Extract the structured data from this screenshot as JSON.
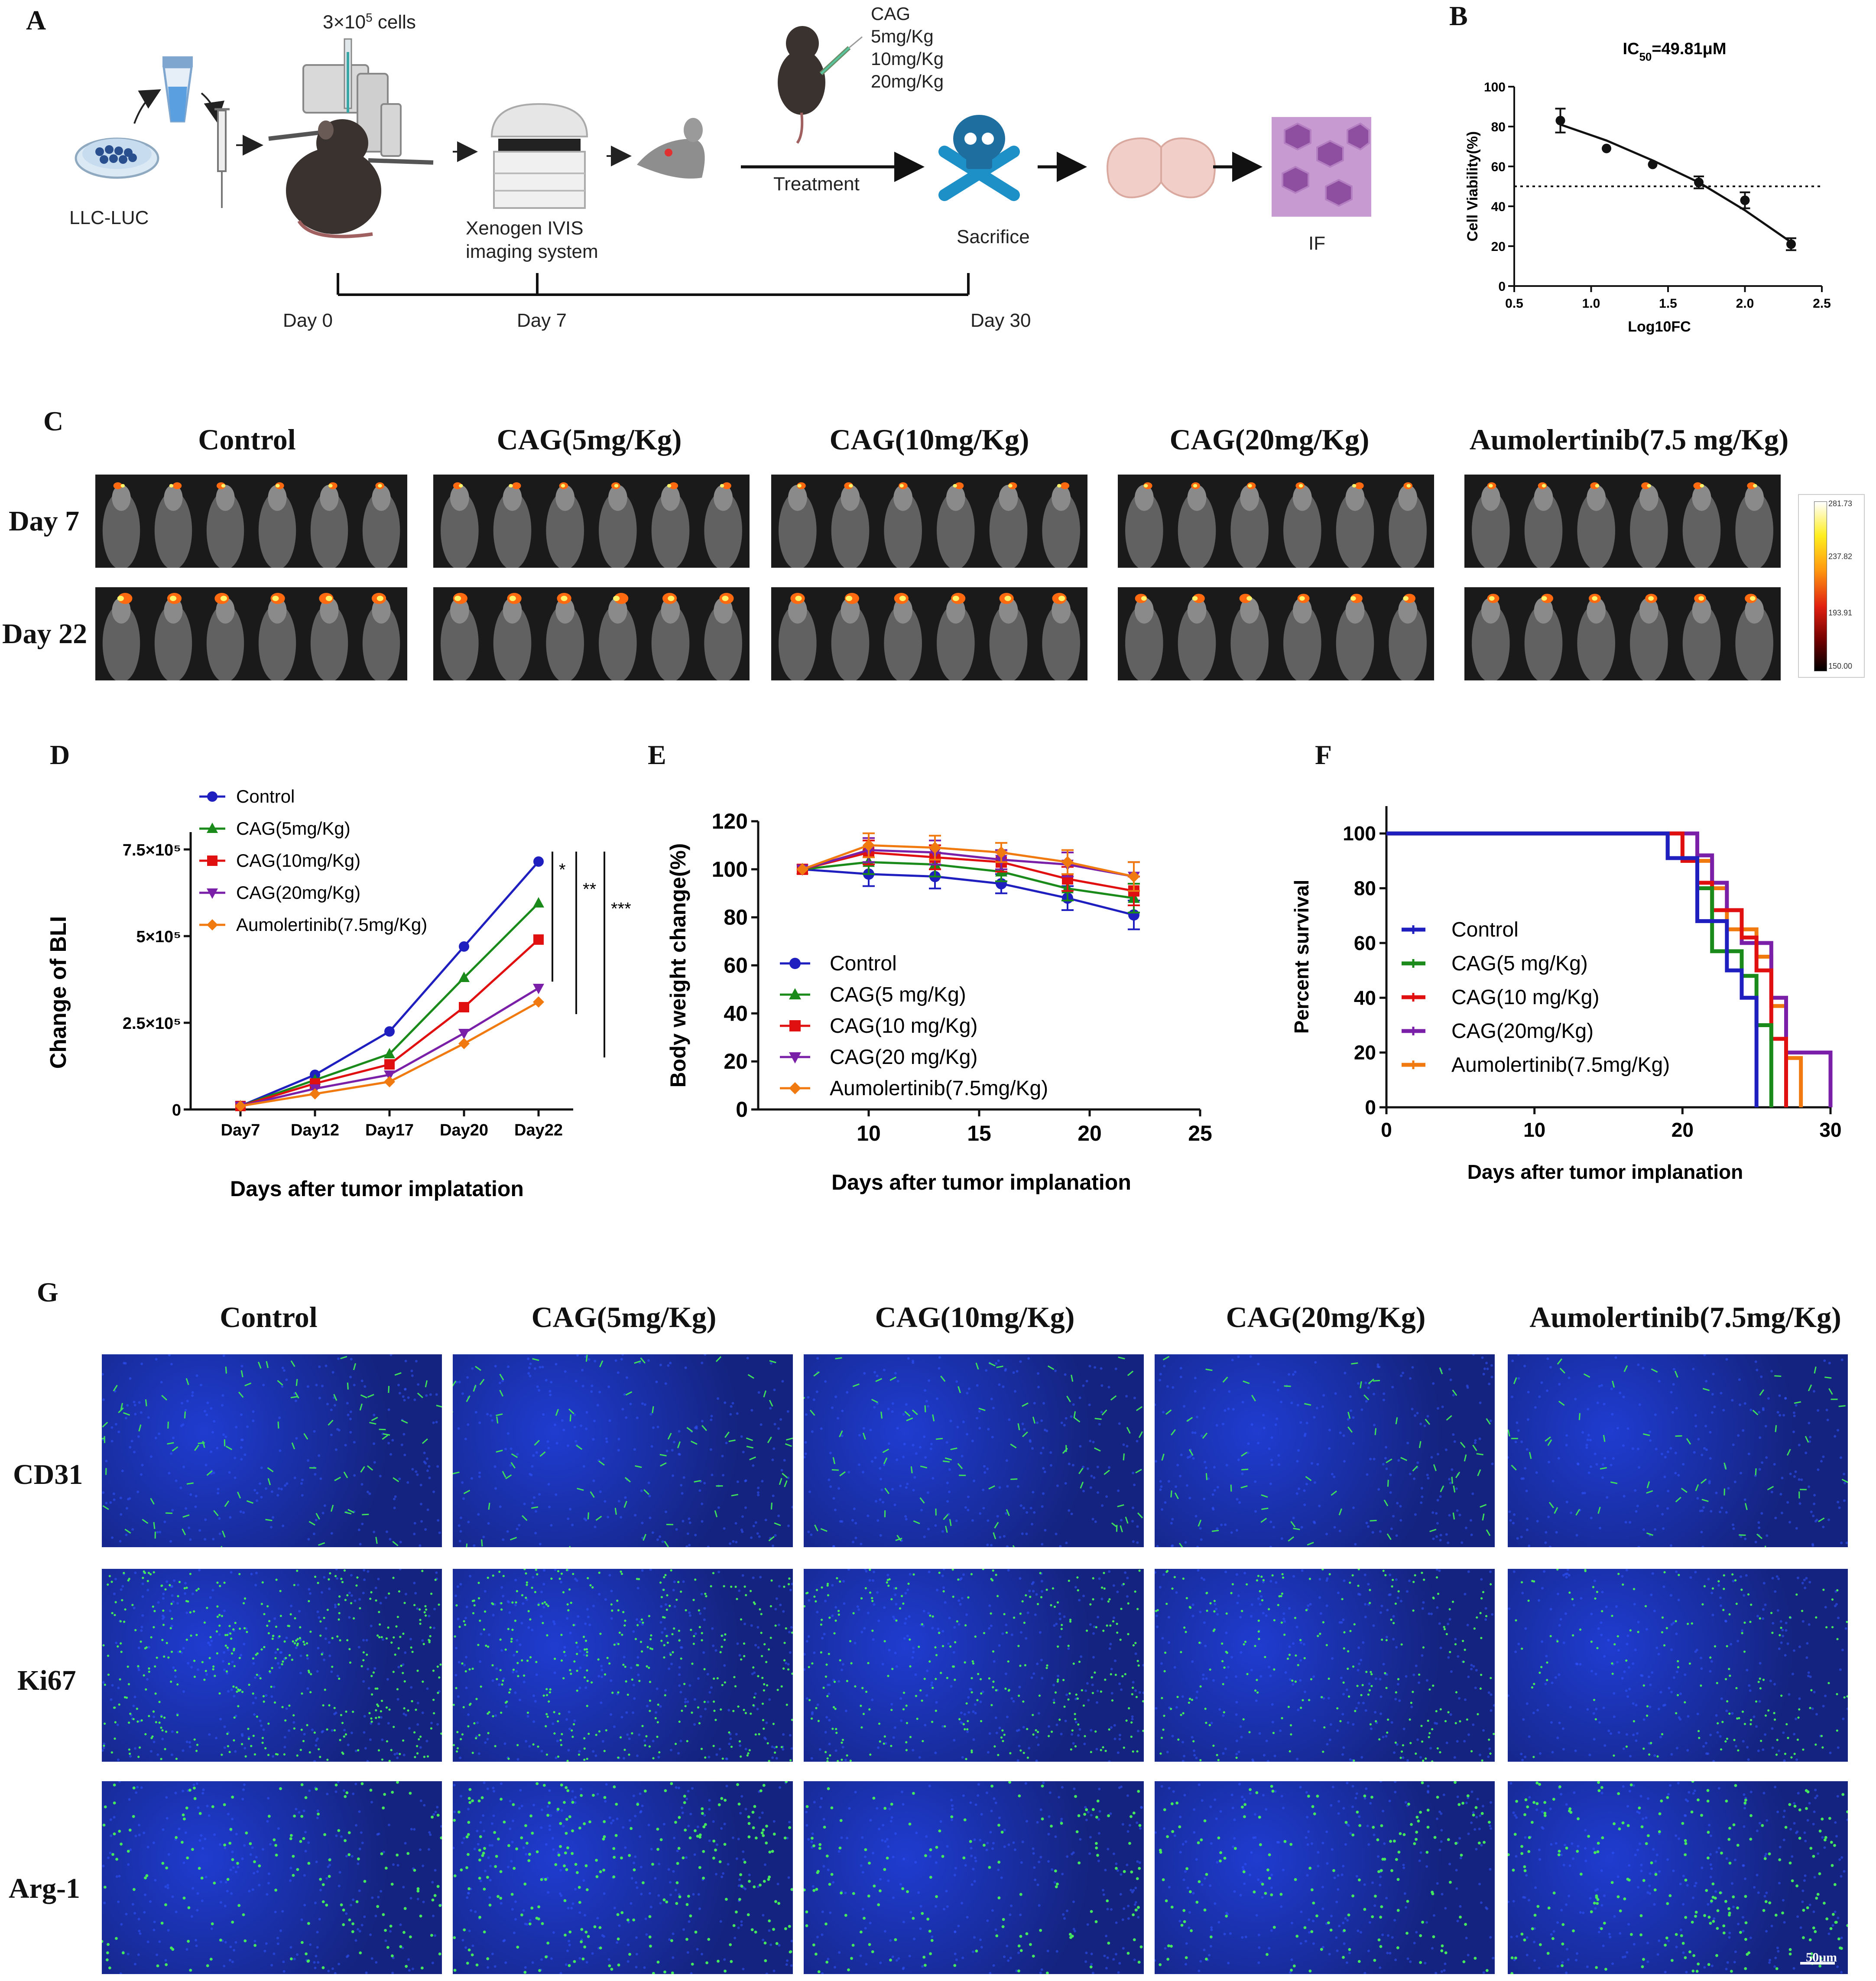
{
  "panel_labels": {
    "a": "A",
    "b": "B",
    "c": "C",
    "d": "D",
    "e": "E",
    "f": "F",
    "g": "G"
  },
  "panelA": {
    "cells_label": "3×10",
    "cells_sup": "5",
    "cells_suffix": " cells",
    "cell_line": "LLC-LUC",
    "drug": "CAG",
    "doses": [
      "5mg/Kg",
      "10mg/Kg",
      "20mg/Kg"
    ],
    "treatment": "Treatment",
    "imaging_line1": "Xenogen IVIS",
    "imaging_line2": "imaging system",
    "sacrifice": "Sacrifice",
    "assay": "IF",
    "timeline": [
      "Day 0",
      "Day 7",
      "Day 30"
    ]
  },
  "panelC": {
    "groups": [
      "Control",
      "CAG(5mg/Kg)",
      "CAG(10mg/Kg)",
      "CAG(20mg/Kg)",
      "Aumolertinib(7.5 mg/Kg)"
    ],
    "rows": [
      "Day 7",
      "Day 22"
    ],
    "scale_ticks": [
      "281.73",
      "237.82",
      "193.91",
      "150.00"
    ]
  },
  "panelG": {
    "groups": [
      "Control",
      "CAG(5mg/Kg)",
      "CAG(10mg/Kg)",
      "CAG(20mg/Kg)",
      "Aumolertinib(7.5mg/Kg)"
    ],
    "rows": [
      "CD31",
      "Ki67",
      "Arg-1"
    ],
    "scale_bar": "50μm"
  },
  "colors": {
    "control": "#1f1fbf",
    "cag5": "#1a8a1a",
    "cag10": "#e01010",
    "cag20": "#7a1fa8",
    "aumo": "#f07a10"
  },
  "chart_data": [
    {
      "id": "B",
      "type": "scatter",
      "title_prefix": "IC",
      "title_sub": "50",
      "title_suffix": "=49.81μM",
      "xlabel": "Log10FC",
      "ylabel": "Cell Viability(%)",
      "xlim": [
        0.5,
        2.5
      ],
      "ylim": [
        0,
        100
      ],
      "xticks": [
        "0.5",
        "1.0",
        "1.5",
        "2.0",
        "2.5"
      ],
      "yticks": [
        "0",
        "20",
        "40",
        "60",
        "80",
        "100"
      ],
      "x": [
        0.8,
        1.1,
        1.4,
        1.7,
        2.0,
        2.3
      ],
      "y": [
        83,
        69,
        61,
        52,
        43,
        21
      ],
      "err": [
        6,
        0,
        0,
        3,
        4,
        3
      ],
      "fit_x": [
        0.8,
        1.1,
        1.4,
        1.7,
        2.0,
        2.3
      ],
      "fit_y": [
        81,
        73,
        63,
        52,
        38,
        22
      ],
      "threshold": 50
    },
    {
      "id": "D",
      "type": "line",
      "xlabel": "Days after tumor implatation",
      "ylabel": "Change of BLI",
      "categories": [
        "Day7",
        "Day12",
        "Day17",
        "Day20",
        "Day22"
      ],
      "yticks": [
        "0",
        "2.5×10⁵",
        "5×10⁵",
        "7.5×10⁵"
      ],
      "ylim": [
        0,
        800000
      ],
      "series": [
        {
          "name": "Control",
          "values": [
            10000,
            100000,
            225000,
            470000,
            715000
          ]
        },
        {
          "name": "CAG(5mg/Kg)",
          "values": [
            10000,
            85000,
            160000,
            380000,
            595000
          ]
        },
        {
          "name": "CAG(10mg/Kg)",
          "values": [
            10000,
            75000,
            130000,
            295000,
            490000
          ]
        },
        {
          "name": "CAG(20mg/Kg)",
          "values": [
            10000,
            60000,
            100000,
            220000,
            350000
          ]
        },
        {
          "name": "Aumolertinib(7.5mg/Kg)",
          "values": [
            10000,
            45000,
            80000,
            190000,
            310000
          ]
        }
      ],
      "significance": [
        "*",
        "**",
        "***"
      ]
    },
    {
      "id": "E",
      "type": "line",
      "xlabel": "Days after tumor implanation",
      "ylabel": "Body weight change(%)",
      "xlim": [
        5,
        25
      ],
      "ylim": [
        0,
        120
      ],
      "xticks": [
        "10",
        "15",
        "20",
        "25"
      ],
      "yticks": [
        "0",
        "20",
        "40",
        "60",
        "80",
        "100",
        "120"
      ],
      "x": [
        7,
        10,
        13,
        16,
        19,
        22
      ],
      "series": [
        {
          "name": "Control",
          "values": [
            100,
            98,
            97,
            94,
            88,
            81
          ]
        },
        {
          "name": "CAG(5 mg/Kg)",
          "values": [
            100,
            103,
            102,
            99,
            92,
            88
          ]
        },
        {
          "name": "CAG(10 mg/Kg)",
          "values": [
            100,
            107,
            105,
            103,
            96,
            91
          ]
        },
        {
          "name": "CAG(20 mg/Kg)",
          "values": [
            100,
            108,
            107,
            104,
            102,
            97
          ]
        },
        {
          "name": "Aumolertinib(7.5mg/Kg)",
          "values": [
            100,
            110,
            109,
            107,
            103,
            97
          ]
        }
      ],
      "err": [
        0,
        5,
        5,
        4,
        5,
        6
      ]
    },
    {
      "id": "F",
      "type": "line",
      "xlabel": "Days after tumor implanation",
      "ylabel": "Percent survival",
      "xlim": [
        0,
        30
      ],
      "ylim": [
        0,
        110
      ],
      "xticks": [
        "0",
        "10",
        "20",
        "30"
      ],
      "yticks": [
        "0",
        "20",
        "40",
        "60",
        "80",
        "100"
      ],
      "series": [
        {
          "name": "Control",
          "steps": [
            [
              0,
              100
            ],
            [
              19,
              100
            ],
            [
              19,
              91
            ],
            [
              21,
              91
            ],
            [
              21,
              68
            ],
            [
              23,
              68
            ],
            [
              23,
              50
            ],
            [
              24,
              50
            ],
            [
              24,
              40
            ],
            [
              25,
              40
            ],
            [
              25,
              0
            ]
          ]
        },
        {
          "name": "CAG(5 mg/Kg)",
          "steps": [
            [
              0,
              100
            ],
            [
              19,
              100
            ],
            [
              19,
              91
            ],
            [
              21,
              91
            ],
            [
              21,
              80
            ],
            [
              22,
              80
            ],
            [
              22,
              57
            ],
            [
              24,
              57
            ],
            [
              24,
              48
            ],
            [
              25,
              48
            ],
            [
              25,
              30
            ],
            [
              26,
              30
            ],
            [
              26,
              0
            ]
          ]
        },
        {
          "name": "CAG(10 mg/Kg)",
          "steps": [
            [
              0,
              100
            ],
            [
              20,
              100
            ],
            [
              20,
              90
            ],
            [
              21,
              90
            ],
            [
              21,
              82
            ],
            [
              22,
              82
            ],
            [
              22,
              72
            ],
            [
              24,
              72
            ],
            [
              24,
              62
            ],
            [
              25,
              62
            ],
            [
              25,
              50
            ],
            [
              26,
              50
            ],
            [
              26,
              25
            ],
            [
              27,
              25
            ],
            [
              27,
              0
            ]
          ]
        },
        {
          "name": "CAG(20mg/Kg)",
          "steps": [
            [
              0,
              100
            ],
            [
              21,
              100
            ],
            [
              21,
              92
            ],
            [
              22,
              92
            ],
            [
              22,
              82
            ],
            [
              23,
              82
            ],
            [
              23,
              72
            ],
            [
              24,
              72
            ],
            [
              24,
              60
            ],
            [
              26,
              60
            ],
            [
              26,
              40
            ],
            [
              27,
              40
            ],
            [
              27,
              20
            ],
            [
              30,
              20
            ],
            [
              30,
              0
            ]
          ]
        },
        {
          "name": "Aumolertinib(7.5mg/Kg)",
          "steps": [
            [
              0,
              100
            ],
            [
              20,
              100
            ],
            [
              20,
              90
            ],
            [
              22,
              90
            ],
            [
              22,
              80
            ],
            [
              23,
              80
            ],
            [
              23,
              65
            ],
            [
              25,
              65
            ],
            [
              25,
              55
            ],
            [
              26,
              55
            ],
            [
              26,
              37
            ],
            [
              27,
              37
            ],
            [
              27,
              18
            ],
            [
              28,
              18
            ],
            [
              28,
              0
            ]
          ]
        }
      ]
    }
  ]
}
